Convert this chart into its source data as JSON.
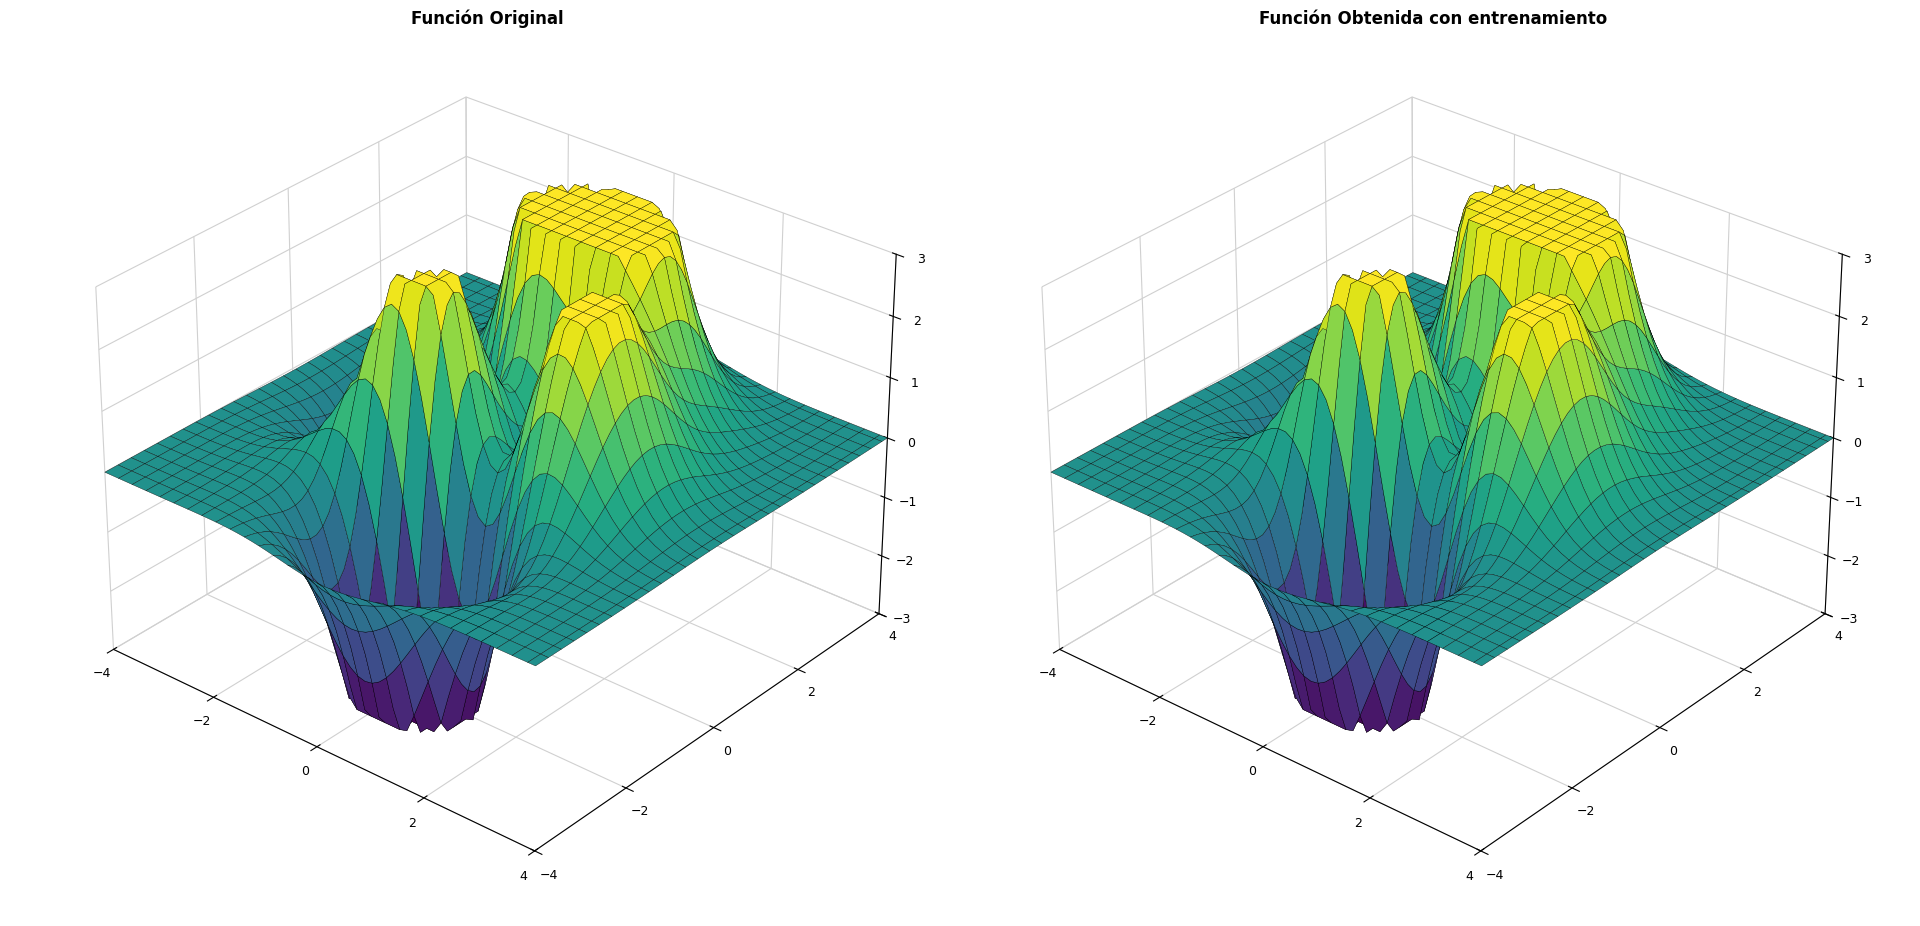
{
  "title1": "Función Original",
  "title2": "Función Obtenida con entrenamiento",
  "xlim": [
    -4,
    4
  ],
  "ylim": [
    -4,
    4
  ],
  "zlim": [
    -3,
    3
  ],
  "xticks": [
    -4,
    -2,
    0,
    2,
    4
  ],
  "yticks": [
    -4,
    -2,
    0,
    2,
    4
  ],
  "zticks": [
    -3,
    -2,
    -1,
    0,
    1,
    2,
    3
  ],
  "n_points": 60,
  "elev": 30,
  "azim": -50,
  "title_fontsize": 12,
  "title_fontweight": "bold",
  "background_color": "#ffffff",
  "linewidth": 0.25,
  "cmap": "viridis"
}
